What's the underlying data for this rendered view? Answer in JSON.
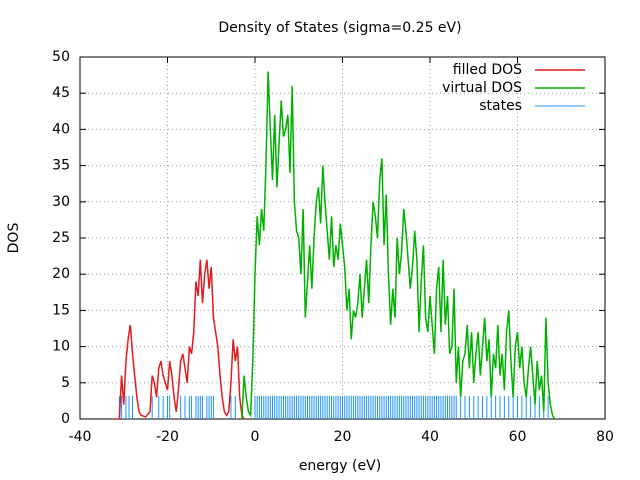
{
  "chart_data": {
    "type": "line",
    "title": "Density of States (sigma=0.25 eV)",
    "x_label": "energy (eV)",
    "y_label": "DOS",
    "xlim": [
      -40,
      80
    ],
    "xticks": [
      -40,
      -20,
      0,
      20,
      40,
      60,
      80
    ],
    "ylim": [
      0,
      50
    ],
    "yticks": [
      0,
      5,
      10,
      15,
      20,
      25,
      30,
      35,
      40,
      45,
      50
    ],
    "grid": true,
    "legend": "top-right",
    "series": [
      {
        "name": "filled DOS",
        "color": "#e41a1c",
        "style": "lines",
        "x": [
          -32,
          -31,
          -30.5,
          -30,
          -29.5,
          -29,
          -28.5,
          -28,
          -27.5,
          -27,
          -26.5,
          -26,
          -25,
          -24,
          -23.5,
          -23,
          -22.5,
          -22,
          -21.5,
          -21,
          -20.5,
          -20,
          -19.5,
          -19,
          -18.5,
          -18,
          -17.5,
          -17,
          -16.5,
          -16,
          -15.5,
          -15,
          -14.5,
          -14,
          -13.5,
          -13,
          -12.5,
          -12,
          -11.5,
          -11,
          -10.5,
          -10,
          -9.5,
          -9,
          -8.5,
          -8,
          -7.5,
          -7,
          -6.5,
          -6,
          -5.5,
          -5,
          -4.5,
          -4,
          -3.5,
          -3,
          -2.5
        ],
        "values": [
          0,
          0,
          6,
          2,
          8,
          11,
          13,
          9,
          6,
          3,
          1,
          0.5,
          0.3,
          1,
          6,
          5,
          3,
          7,
          8,
          6,
          5,
          4,
          8,
          6,
          3,
          1,
          4,
          8,
          9,
          7,
          5,
          10,
          9,
          12,
          19,
          17,
          22,
          16,
          20,
          22,
          18,
          21,
          14,
          12,
          10,
          6,
          3,
          1,
          0.5,
          1,
          5,
          11,
          8,
          10,
          3,
          0.5,
          0
        ]
      },
      {
        "name": "virtual DOS",
        "color": "#00b000",
        "style": "lines",
        "x": [
          -3,
          -2.5,
          -2,
          -1.5,
          -1,
          -0.5,
          0,
          0.5,
          1,
          1.5,
          2,
          2.5,
          3,
          3.5,
          4,
          4.5,
          5,
          5.5,
          6,
          6.5,
          7,
          7.5,
          8,
          8.5,
          9,
          9.5,
          10,
          10.5,
          11,
          11.5,
          12,
          12.5,
          13,
          13.5,
          14,
          14.5,
          15,
          15.5,
          16,
          16.5,
          17,
          17.5,
          18,
          18.5,
          19,
          19.5,
          20,
          20.5,
          21,
          21.5,
          22,
          22.5,
          23,
          23.5,
          24,
          24.5,
          25,
          25.5,
          26,
          26.5,
          27,
          27.5,
          28,
          28.5,
          29,
          29.5,
          30,
          30.5,
          31,
          31.5,
          32,
          32.5,
          33,
          33.5,
          34,
          34.5,
          35,
          35.5,
          36,
          36.5,
          37,
          37.5,
          38,
          38.5,
          39,
          39.5,
          40,
          40.5,
          41,
          41.5,
          42,
          42.5,
          43,
          43.5,
          44,
          44.5,
          45,
          45.5,
          46,
          46.5,
          47,
          47.5,
          48,
          48.5,
          49,
          49.5,
          50,
          50.5,
          51,
          51.5,
          52,
          52.5,
          53,
          53.5,
          54,
          54.5,
          55,
          55.5,
          56,
          56.5,
          57,
          57.5,
          58,
          58.5,
          59,
          59.5,
          60,
          60.5,
          61,
          61.5,
          62,
          62.5,
          63,
          63.5,
          64,
          64.5,
          65,
          65.5,
          66,
          66.5,
          67,
          67.5,
          68,
          68.5
        ],
        "values": [
          0,
          6,
          3,
          1,
          0.5,
          8,
          20,
          28,
          24,
          29,
          26,
          35,
          48,
          40,
          33,
          42,
          32,
          38,
          44,
          39,
          40,
          42,
          34,
          46,
          30,
          26,
          25,
          20,
          29,
          14,
          19,
          24,
          18,
          25,
          30,
          32,
          27,
          35,
          30,
          26,
          22,
          28,
          21,
          24,
          22,
          27,
          24,
          21,
          15,
          18,
          11,
          15,
          14,
          16,
          20,
          14,
          18,
          22,
          16,
          24,
          30,
          28,
          25,
          33,
          36,
          24,
          31,
          20,
          13,
          18,
          14,
          25,
          20,
          23,
          29,
          26,
          22,
          18,
          21,
          26,
          22,
          12,
          19,
          24,
          14,
          12,
          17,
          13,
          9,
          18,
          21,
          12,
          22,
          13,
          17,
          9,
          10,
          18,
          5,
          10,
          3,
          8,
          9,
          13,
          7,
          12,
          5,
          9,
          12,
          6,
          10,
          14,
          8,
          11,
          3,
          9,
          7,
          13,
          6,
          9,
          4,
          12,
          15,
          8,
          3,
          10,
          12,
          7,
          10,
          5,
          3,
          7,
          10,
          6,
          2,
          8,
          4,
          6,
          1,
          14,
          5,
          2,
          0.5,
          0
        ]
      },
      {
        "name": "states",
        "color": "#1e90ff",
        "style": "impulses",
        "x": [
          -31,
          -30.5,
          -29.5,
          -28.8,
          -28,
          -23.5,
          -22,
          -21,
          -20,
          -19.5,
          -17,
          -16,
          -15,
          -14.5,
          -13.5,
          -13,
          -12.5,
          -12,
          -11,
          -10.5,
          -10,
          -9.5,
          -5.5,
          -4.5,
          0,
          0.5,
          1,
          1.5,
          2,
          2.5,
          3,
          3.5,
          4,
          4.5,
          5,
          5.5,
          6,
          6.5,
          7,
          7.5,
          8,
          8.5,
          9,
          9.5,
          10,
          10.5,
          11,
          11.5,
          12,
          12.5,
          13,
          13.5,
          14,
          14.5,
          15,
          15.5,
          16,
          16.5,
          17,
          17.5,
          18,
          18.5,
          19,
          19.5,
          20,
          20.5,
          21,
          21.5,
          22,
          22.5,
          23,
          23.5,
          24,
          24.5,
          25,
          25.5,
          26,
          26.5,
          27,
          27.5,
          28,
          28.5,
          29,
          29.5,
          30,
          30.5,
          31,
          31.5,
          32,
          32.5,
          33,
          33.5,
          34,
          34.5,
          35,
          35.5,
          36,
          36.5,
          37,
          37.5,
          38,
          38.5,
          39,
          39.5,
          40,
          40.5,
          41,
          41.5,
          42,
          42.5,
          43,
          43.5,
          44,
          44.5,
          45,
          45.5,
          46,
          47,
          48,
          49,
          50,
          51,
          52,
          53,
          54,
          55,
          56,
          57,
          58,
          59,
          60,
          61,
          62,
          63,
          64,
          65,
          66,
          67
        ],
        "values": [
          3.2,
          3.2,
          3.2,
          3.2,
          3.2,
          3.2,
          3.2,
          3.2,
          3.2,
          3.2,
          3.2,
          3.2,
          3.2,
          3.2,
          3.2,
          3.2,
          3.2,
          3.2,
          3.2,
          3.2,
          3.2,
          3.2,
          3.2,
          3.2,
          3.2,
          3.2,
          3.2,
          3.2,
          3.2,
          3.2,
          3.2,
          3.2,
          3.2,
          3.2,
          3.2,
          3.2,
          3.2,
          3.2,
          3.2,
          3.2,
          3.2,
          3.2,
          3.2,
          3.2,
          3.2,
          3.2,
          3.2,
          3.2,
          3.2,
          3.2,
          3.2,
          3.2,
          3.2,
          3.2,
          3.2,
          3.2,
          3.2,
          3.2,
          3.2,
          3.2,
          3.2,
          3.2,
          3.2,
          3.2,
          3.2,
          3.2,
          3.2,
          3.2,
          3.2,
          3.2,
          3.2,
          3.2,
          3.2,
          3.2,
          3.2,
          3.2,
          3.2,
          3.2,
          3.2,
          3.2,
          3.2,
          3.2,
          3.2,
          3.2,
          3.2,
          3.2,
          3.2,
          3.2,
          3.2,
          3.2,
          3.2,
          3.2,
          3.2,
          3.2,
          3.2,
          3.2,
          3.2,
          3.2,
          3.2,
          3.2,
          3.2,
          3.2,
          3.2,
          3.2,
          3.2,
          3.2,
          3.2,
          3.2,
          3.2,
          3.2,
          3.2,
          3.2,
          3.2,
          3.2,
          3.2,
          3.2,
          3.2,
          3.2,
          3.2,
          3.2,
          3.2,
          3.2,
          3.2,
          3.2,
          3.2,
          3.2,
          3.2,
          3.2,
          3.2,
          3.2,
          3.2,
          3.2,
          3.2,
          3.2,
          3.2,
          3.2,
          3.2,
          3.2
        ]
      }
    ]
  }
}
